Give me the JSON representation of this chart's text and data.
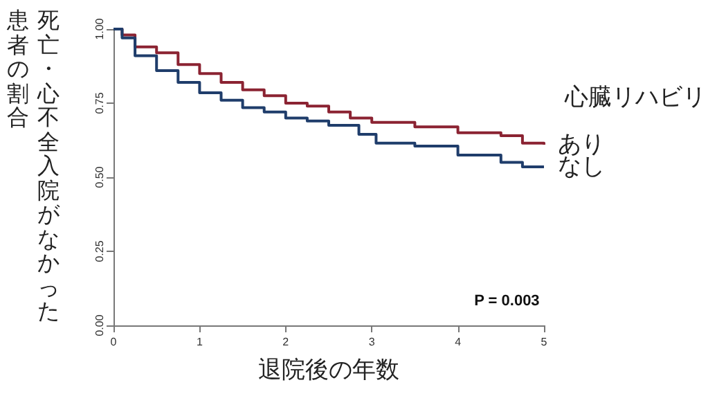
{
  "chart_data": {
    "type": "step",
    "xlabel": "退院後の年数",
    "ylabel": "死亡・心不全入院がなかった患者の割合",
    "legend_title": "心臓リハビリ",
    "annotations": [
      "P = 0.003"
    ],
    "series": [
      {
        "name": "あり",
        "color": "#8b2332",
        "x": [
          0,
          0.1,
          0.25,
          0.5,
          0.75,
          1,
          1.25,
          1.5,
          1.75,
          2,
          2.25,
          2.5,
          2.75,
          3,
          3.5,
          4,
          4.5,
          4.75,
          5
        ],
        "values": [
          1,
          0.98,
          0.94,
          0.92,
          0.88,
          0.85,
          0.82,
          0.795,
          0.775,
          0.75,
          0.74,
          0.72,
          0.7,
          0.685,
          0.67,
          0.65,
          0.64,
          0.615,
          0.61
        ]
      },
      {
        "name": "なし",
        "color": "#1f3d6b",
        "x": [
          0,
          0.1,
          0.25,
          0.5,
          0.75,
          1,
          1.25,
          1.5,
          1.75,
          2,
          2.25,
          2.5,
          2.85,
          3.05,
          3.5,
          4,
          4.5,
          4.75,
          5
        ],
        "values": [
          1,
          0.97,
          0.91,
          0.86,
          0.82,
          0.785,
          0.76,
          0.735,
          0.72,
          0.7,
          0.69,
          0.675,
          0.645,
          0.615,
          0.605,
          0.575,
          0.55,
          0.535,
          0.535
        ]
      }
    ],
    "xlim": [
      0,
      5
    ],
    "xticks": [
      0,
      1,
      2,
      3,
      4,
      5
    ],
    "ylim": [
      0,
      1
    ],
    "yticks": [
      {
        "value": 0,
        "label": "0.00"
      },
      {
        "value": 0.25,
        "label": "0.25"
      },
      {
        "value": 0.5,
        "label": "0.50"
      },
      {
        "value": 0.75,
        "label": "0.75"
      },
      {
        "value": 1,
        "label": "1.00"
      }
    ],
    "grid": false,
    "marker": "none"
  }
}
